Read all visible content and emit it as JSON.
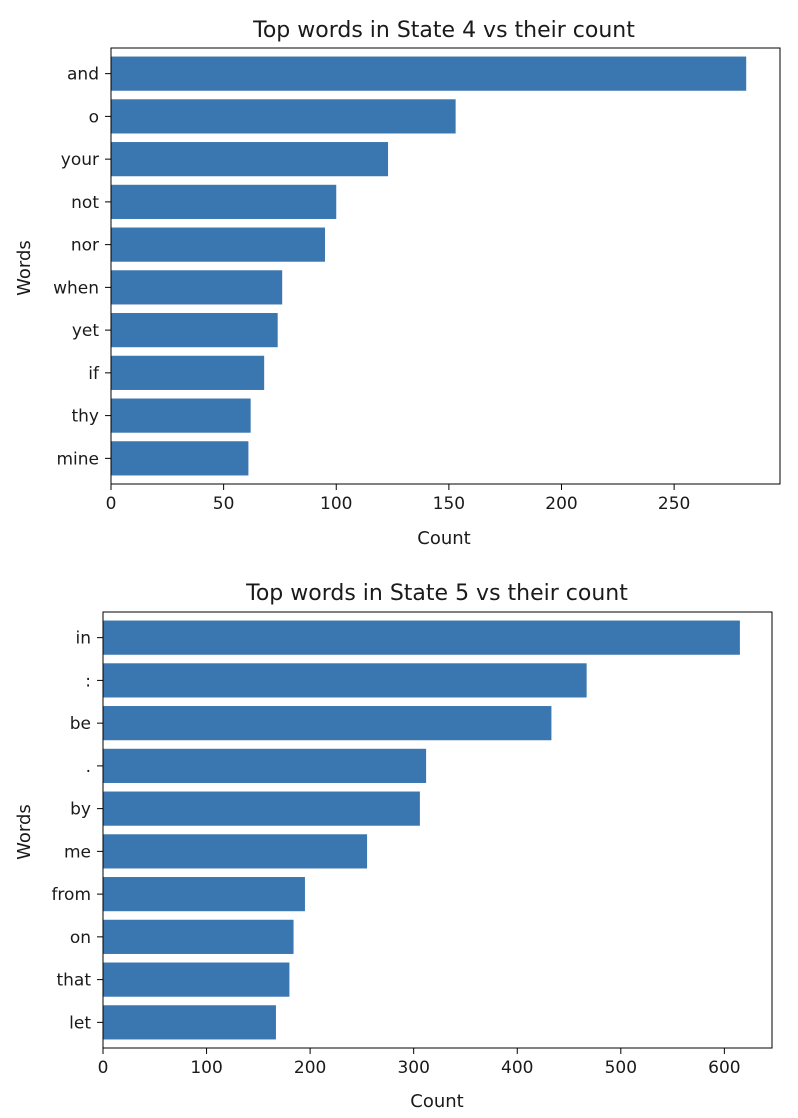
{
  "chart_data": [
    {
      "type": "bar",
      "orientation": "horizontal",
      "title": "Top words in State 4 vs their count",
      "xlabel": "Count",
      "ylabel": "Words",
      "categories": [
        "and",
        "o",
        "your",
        "not",
        "nor",
        "when",
        "yet",
        "if",
        "thy",
        "mine"
      ],
      "values": [
        282,
        153,
        123,
        100,
        95,
        76,
        74,
        68,
        62,
        61
      ],
      "xlim": [
        0,
        297
      ],
      "xticks": [
        0,
        50,
        100,
        150,
        200,
        250
      ],
      "bar_color": "#3a76af",
      "grid": false,
      "legend": "none"
    },
    {
      "type": "bar",
      "orientation": "horizontal",
      "title": "Top words in State 5 vs their count",
      "xlabel": "Count",
      "ylabel": "Words",
      "categories": [
        "in",
        ":",
        "be",
        ".",
        "by",
        "me",
        "from",
        "on",
        "that",
        "let"
      ],
      "values": [
        615,
        467,
        433,
        312,
        306,
        255,
        195,
        184,
        180,
        167
      ],
      "xlim": [
        0,
        646
      ],
      "xticks": [
        0,
        100,
        200,
        300,
        400,
        500,
        600
      ],
      "bar_color": "#3a76af",
      "grid": false,
      "legend": "none"
    }
  ]
}
